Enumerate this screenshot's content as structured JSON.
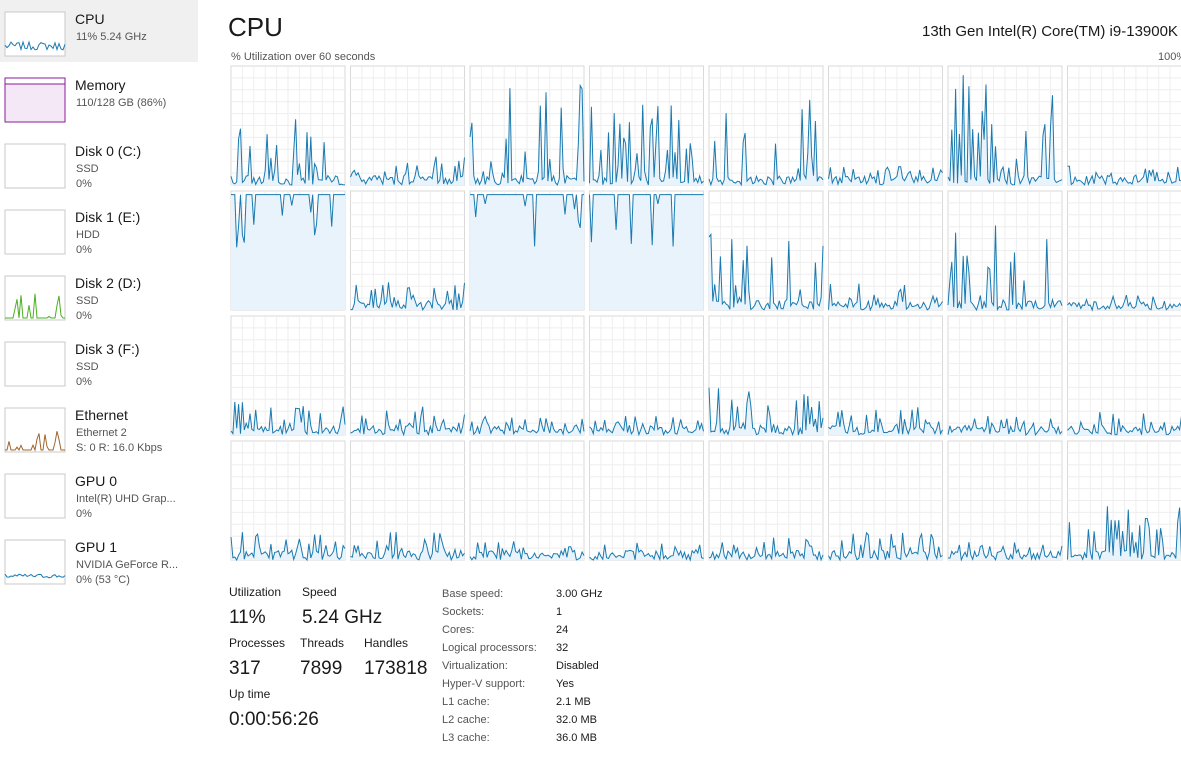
{
  "sidebar": {
    "items": [
      {
        "name": "CPU",
        "lines": [
          "11%  5.24 GHz"
        ]
      },
      {
        "name": "Memory",
        "lines": [
          "110/128 GB (86%)"
        ]
      },
      {
        "name": "Disk 0 (C:)",
        "lines": [
          "SSD",
          "0%"
        ]
      },
      {
        "name": "Disk 1 (E:)",
        "lines": [
          "HDD",
          "0%"
        ]
      },
      {
        "name": "Disk 2 (D:)",
        "lines": [
          "SSD",
          "0%"
        ]
      },
      {
        "name": "Disk 3 (F:)",
        "lines": [
          "SSD",
          "0%"
        ]
      },
      {
        "name": "Ethernet",
        "lines": [
          "Ethernet 2",
          "S: 0  R: 16.0 Kbps"
        ]
      },
      {
        "name": "GPU 0",
        "lines": [
          "Intel(R) UHD Grap...",
          "0%"
        ]
      },
      {
        "name": "GPU 1",
        "lines": [
          "NVIDIA GeForce R...",
          "0% (53 °C)"
        ]
      }
    ]
  },
  "header": {
    "title": "CPU",
    "processor": "13th Gen Intel(R) Core(TM) i9-13900K",
    "subtitle": "% Utilization over 60 seconds",
    "max_label": "100%"
  },
  "stats": [
    {
      "label": "Utilization",
      "value": "11%"
    },
    {
      "label": "Speed",
      "value": "5.24 GHz"
    },
    {
      "label": "Processes",
      "value": "317"
    },
    {
      "label": "Threads",
      "value": "7899"
    },
    {
      "label": "Handles",
      "value": "173818"
    },
    {
      "label": "Up time",
      "value": "0:00:56:26"
    }
  ],
  "details": [
    {
      "label": "Base speed:",
      "value": "3.00 GHz"
    },
    {
      "label": "Sockets:",
      "value": "1"
    },
    {
      "label": "Cores:",
      "value": "24"
    },
    {
      "label": "Logical processors:",
      "value": "32"
    },
    {
      "label": "Virtualization:",
      "value": "Disabled"
    },
    {
      "label": "Hyper-V support:",
      "value": "Yes"
    },
    {
      "label": "L1 cache:",
      "value": "2.1 MB"
    },
    {
      "label": "L2 cache:",
      "value": "32.0 MB"
    },
    {
      "label": "L3 cache:",
      "value": "36.0 MB"
    }
  ]
}
